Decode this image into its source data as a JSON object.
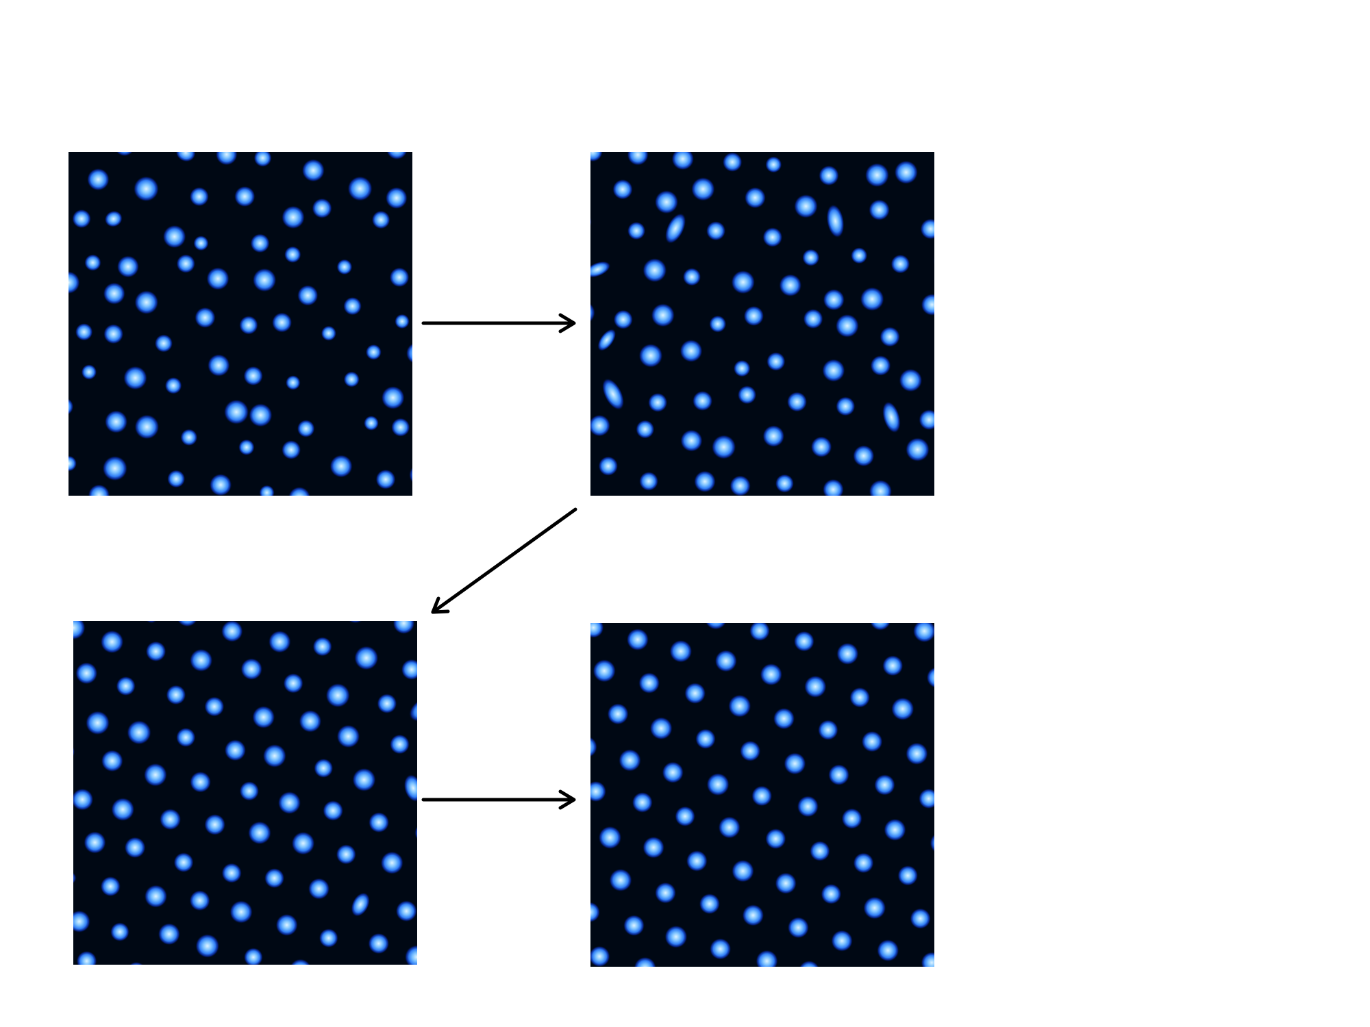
{
  "figure": {
    "panels": [
      {
        "id": "panel-1",
        "pattern": "disordered",
        "pattern_seed": 11
      },
      {
        "id": "panel-2",
        "pattern": "disordered-elongated",
        "pattern_seed": 23
      },
      {
        "id": "panel-3",
        "pattern": "partially-ordered",
        "pattern_seed": 37
      },
      {
        "id": "panel-4",
        "pattern": "hexagonal-ordered",
        "pattern_seed": 41
      }
    ],
    "arrows": [
      {
        "from": "panel-1",
        "to": "panel-2",
        "direction": "right"
      },
      {
        "from": "panel-2",
        "to": "panel-3",
        "direction": "down-left"
      },
      {
        "from": "panel-3",
        "to": "panel-4",
        "direction": "right"
      }
    ],
    "colors": {
      "background": "#000814",
      "spot_core": "#dff4ff",
      "spot_mid": "#3c9bff",
      "spot_edge": "#0a3cdc",
      "arrow": "#000000"
    }
  }
}
